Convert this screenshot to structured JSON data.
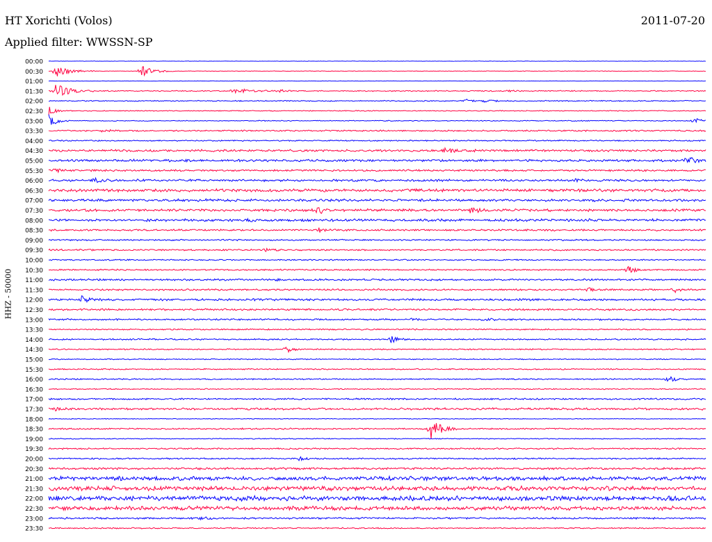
{
  "header": {
    "station": "HT Xorichti (Volos)",
    "date": "2011-07-20",
    "filter_label": "Applied filter: WWSSN-SP"
  },
  "axis": {
    "channel_scale": "HHZ - 50000"
  },
  "colors": {
    "trace_a": "#0000ff",
    "trace_b": "#ff0040"
  },
  "chart_data": {
    "type": "line",
    "title": "HT Xorichti (Volos)",
    "subtitle": "Applied filter: WWSSN-SP",
    "ylabel": "HHZ - 50000",
    "xlabel": "",
    "grid": false,
    "row_interval_minutes": 30,
    "row_color_cycle": [
      "trace_a",
      "trace_b"
    ],
    "rows": [
      {
        "time": "00:00",
        "noise": 0.2,
        "events": []
      },
      {
        "time": "00:30",
        "noise": 0.3,
        "events": [
          {
            "t": 0.01,
            "amp": 9,
            "dur": 0.06
          },
          {
            "t": 0.14,
            "amp": 8,
            "dur": 0.05
          }
        ]
      },
      {
        "time": "01:00",
        "noise": 0.2,
        "events": []
      },
      {
        "time": "01:30",
        "noise": 0.6,
        "events": [
          {
            "t": 0.01,
            "amp": 10,
            "dur": 0.06
          },
          {
            "t": 0.28,
            "amp": 4,
            "dur": 0.06
          },
          {
            "t": 0.35,
            "amp": 2,
            "dur": 0.03
          },
          {
            "t": 0.7,
            "amp": 2,
            "dur": 0.02
          }
        ]
      },
      {
        "time": "02:00",
        "noise": 0.6,
        "events": [
          {
            "t": 0.63,
            "amp": 4,
            "dur": 0.03
          },
          {
            "t": 0.66,
            "amp": 2,
            "dur": 0.04
          }
        ]
      },
      {
        "time": "02:30",
        "noise": 0.5,
        "events": [
          {
            "t": 0.0,
            "amp": 8,
            "dur": 0.02
          }
        ]
      },
      {
        "time": "03:00",
        "noise": 0.5,
        "events": [
          {
            "t": 0.0,
            "amp": 10,
            "dur": 0.03
          },
          {
            "t": 0.98,
            "amp": 4,
            "dur": 0.03
          }
        ]
      },
      {
        "time": "03:30",
        "noise": 0.8,
        "events": [
          {
            "t": 0.08,
            "amp": 2,
            "dur": 0.03
          }
        ]
      },
      {
        "time": "04:00",
        "noise": 0.7,
        "events": []
      },
      {
        "time": "04:30",
        "noise": 1.2,
        "events": [
          {
            "t": 0.6,
            "amp": 3,
            "dur": 0.05
          }
        ]
      },
      {
        "time": "05:00",
        "noise": 1.3,
        "events": [
          {
            "t": 0.97,
            "amp": 6,
            "dur": 0.03
          }
        ]
      },
      {
        "time": "05:30",
        "noise": 1.0,
        "events": [
          {
            "t": 0.01,
            "amp": 3,
            "dur": 0.02
          }
        ]
      },
      {
        "time": "06:00",
        "noise": 1.2,
        "events": [
          {
            "t": 0.07,
            "amp": 4,
            "dur": 0.03
          },
          {
            "t": 0.8,
            "amp": 2,
            "dur": 0.03
          }
        ]
      },
      {
        "time": "06:30",
        "noise": 1.6,
        "events": []
      },
      {
        "time": "07:00",
        "noise": 1.4,
        "events": []
      },
      {
        "time": "07:30",
        "noise": 1.4,
        "events": [
          {
            "t": 0.41,
            "amp": 8,
            "dur": 0.02
          },
          {
            "t": 0.64,
            "amp": 4,
            "dur": 0.04
          }
        ]
      },
      {
        "time": "08:00",
        "noise": 1.4,
        "events": [
          {
            "t": 0.3,
            "amp": 2,
            "dur": 0.03
          }
        ]
      },
      {
        "time": "08:30",
        "noise": 1.0,
        "events": [
          {
            "t": 0.41,
            "amp": 4,
            "dur": 0.02
          }
        ]
      },
      {
        "time": "09:00",
        "noise": 0.8,
        "events": []
      },
      {
        "time": "09:30",
        "noise": 0.9,
        "events": [
          {
            "t": 0.33,
            "amp": 2,
            "dur": 0.03
          }
        ]
      },
      {
        "time": "10:00",
        "noise": 0.7,
        "events": []
      },
      {
        "time": "10:30",
        "noise": 0.8,
        "events": [
          {
            "t": 0.88,
            "amp": 5,
            "dur": 0.03
          }
        ]
      },
      {
        "time": "11:00",
        "noise": 1.0,
        "events": [
          {
            "t": 0.34,
            "amp": 2,
            "dur": 0.03
          }
        ]
      },
      {
        "time": "11:30",
        "noise": 0.9,
        "events": [
          {
            "t": 0.82,
            "amp": 3,
            "dur": 0.03
          },
          {
            "t": 0.95,
            "amp": 4,
            "dur": 0.03
          }
        ]
      },
      {
        "time": "12:00",
        "noise": 1.2,
        "events": [
          {
            "t": 0.05,
            "amp": 5,
            "dur": 0.03
          }
        ]
      },
      {
        "time": "12:30",
        "noise": 1.0,
        "events": []
      },
      {
        "time": "13:00",
        "noise": 0.9,
        "events": [
          {
            "t": 0.55,
            "amp": 2,
            "dur": 0.03
          },
          {
            "t": 0.66,
            "amp": 2,
            "dur": 0.03
          }
        ]
      },
      {
        "time": "13:30",
        "noise": 0.7,
        "events": []
      },
      {
        "time": "14:00",
        "noise": 0.8,
        "events": [
          {
            "t": 0.52,
            "amp": 5,
            "dur": 0.03
          }
        ]
      },
      {
        "time": "14:30",
        "noise": 0.7,
        "events": [
          {
            "t": 0.36,
            "amp": 5,
            "dur": 0.03
          }
        ]
      },
      {
        "time": "15:00",
        "noise": 0.6,
        "events": []
      },
      {
        "time": "15:30",
        "noise": 0.7,
        "events": []
      },
      {
        "time": "16:00",
        "noise": 0.7,
        "events": [
          {
            "t": 0.94,
            "amp": 5,
            "dur": 0.03
          }
        ]
      },
      {
        "time": "16:30",
        "noise": 0.6,
        "events": []
      },
      {
        "time": "17:00",
        "noise": 0.9,
        "events": []
      },
      {
        "time": "17:30",
        "noise": 1.2,
        "events": [
          {
            "t": 0.01,
            "amp": 3,
            "dur": 0.03
          }
        ]
      },
      {
        "time": "18:00",
        "noise": 0.4,
        "events": []
      },
      {
        "time": "18:30",
        "noise": 0.8,
        "events": [
          {
            "t": 0.58,
            "amp": 16,
            "dur": 0.04
          }
        ]
      },
      {
        "time": "19:00",
        "noise": 0.5,
        "events": []
      },
      {
        "time": "19:30",
        "noise": 0.8,
        "events": []
      },
      {
        "time": "20:00",
        "noise": 0.8,
        "events": [
          {
            "t": 0.38,
            "amp": 4,
            "dur": 0.02
          }
        ]
      },
      {
        "time": "20:30",
        "noise": 1.2,
        "events": []
      },
      {
        "time": "21:00",
        "noise": 2.2,
        "events": []
      },
      {
        "time": "21:30",
        "noise": 2.4,
        "events": []
      },
      {
        "time": "22:00",
        "noise": 2.6,
        "events": []
      },
      {
        "time": "22:30",
        "noise": 2.2,
        "events": []
      },
      {
        "time": "23:00",
        "noise": 1.0,
        "events": [
          {
            "t": 0.23,
            "amp": 3,
            "dur": 0.02
          }
        ]
      },
      {
        "time": "23:30",
        "noise": 0.7,
        "events": []
      }
    ]
  }
}
